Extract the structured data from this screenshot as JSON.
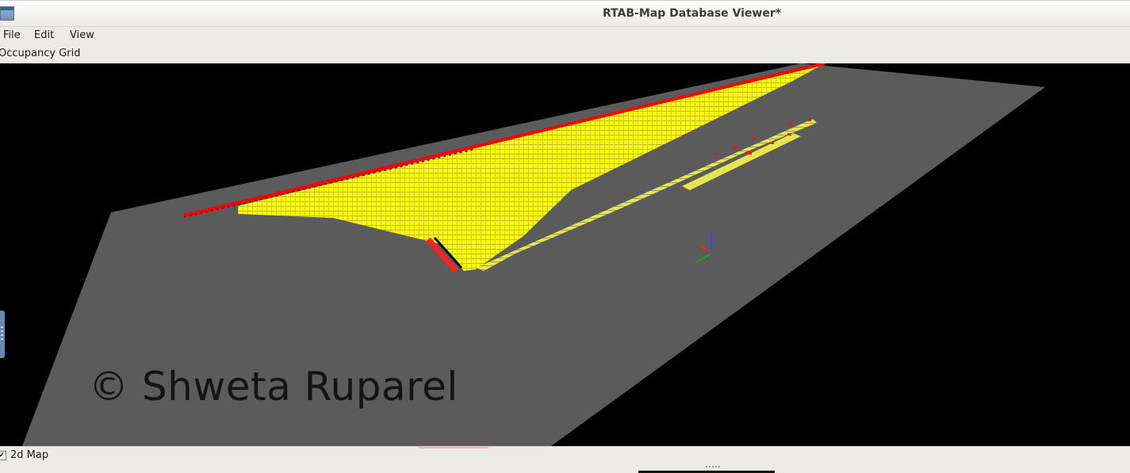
{
  "window": {
    "title": "RTAB-Map Database Viewer*",
    "icon": "window-icon"
  },
  "menu": {
    "items": [
      {
        "label": "File"
      },
      {
        "label": "Edit"
      },
      {
        "label": "View"
      }
    ]
  },
  "dock": {
    "title": "Occupancy Grid"
  },
  "viewport": {
    "watermark": "© Shweta Ruparel",
    "colors": {
      "background": "#000000",
      "ground": "#5b5b5b",
      "free_space": "#ffff00",
      "obstacle": "#ff0000",
      "axis_x": "#ff0000",
      "axis_y": "#00c000",
      "axis_z": "#2050ff"
    }
  },
  "status": {
    "checkbox_checked": true,
    "checkbox_label": "2d Map"
  }
}
